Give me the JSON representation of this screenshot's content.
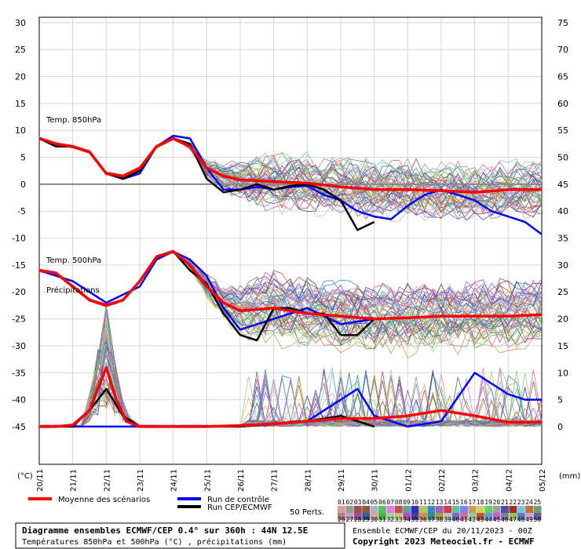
{
  "chart_data": {
    "type": "line",
    "title": "Diagramme ensembles ECMWF/CEP 0.4° sur 360h : 44N 12.5E",
    "subtitle": "Températures 850hPa et 500hPa (°C) , précipitations (mm)",
    "left_axis_unit": "(°C)",
    "right_axis_unit": "(mm)",
    "left_ticks": [
      30,
      25,
      20,
      15,
      10,
      5,
      0,
      -5,
      -10,
      -15,
      -20,
      -25,
      -30,
      -35,
      -40,
      -45
    ],
    "right_ticks": [
      75,
      70,
      65,
      60,
      55,
      50,
      45,
      40,
      35,
      30,
      25,
      20,
      15,
      10,
      5,
      0
    ],
    "ylim": [
      -52,
      31
    ],
    "right_ylim": [
      0,
      75
    ],
    "x_dates": [
      "20/11",
      "21/11",
      "22/11",
      "23/11",
      "24/11",
      "25/11",
      "26/11",
      "27/11",
      "28/11",
      "29/11",
      "30/11",
      "01/12",
      "02/12",
      "03/12",
      "04/12",
      "05/12"
    ],
    "grid": true,
    "panel_labels": [
      "Temp. 850hPa",
      "Temp. 500hPa",
      "Précipitations"
    ],
    "reference_line_y": 0,
    "series": [
      {
        "name": "Moyenne des scénarios",
        "color": "#ff0000",
        "group": "t850",
        "x": [
          0,
          0.5,
          1,
          1.5,
          2,
          2.5,
          3,
          3.5,
          4,
          4.5,
          5,
          5.5,
          6,
          7,
          8,
          9,
          10,
          11,
          12,
          13,
          14,
          15
        ],
        "values": [
          8.5,
          7.5,
          7,
          6,
          2,
          1.5,
          3,
          7,
          8.5,
          7,
          3,
          1.5,
          0.8,
          0.5,
          0.2,
          -0.5,
          -1,
          -1,
          -1.2,
          -1.5,
          -1,
          -1
        ]
      },
      {
        "name": "Run de contrôle",
        "color": "#0000ff",
        "group": "t850",
        "x": [
          0,
          0.5,
          1,
          1.5,
          2,
          2.5,
          3,
          3.5,
          4,
          4.5,
          5,
          5.5,
          6,
          6.5,
          7,
          7.5,
          8,
          8.5,
          9,
          9.5,
          10,
          10.5,
          11,
          11.5,
          12,
          12.5,
          13,
          13.5,
          14,
          14.5,
          15
        ],
        "values": [
          8.5,
          7,
          7,
          6,
          2,
          1,
          2,
          7,
          9,
          8.5,
          3,
          -1,
          -1,
          -0.5,
          -1,
          -0.5,
          -0.3,
          -2,
          -3,
          -5,
          -6,
          -6.5,
          -4,
          -2,
          -1,
          -2,
          -3,
          -5,
          -6,
          -7,
          -9.3
        ]
      },
      {
        "name": "Run CEP/ECMWF",
        "color": "#000000",
        "group": "t850",
        "x": [
          0,
          0.5,
          1,
          1.5,
          2,
          2.5,
          3,
          3.5,
          4,
          4.5,
          5,
          5.5,
          6,
          6.5,
          7,
          7.5,
          8,
          8.5,
          9,
          9.5,
          10
        ],
        "values": [
          8.5,
          7,
          7,
          6,
          2,
          1,
          2.5,
          7,
          8.5,
          7.5,
          1,
          -1.5,
          -1,
          0,
          -1,
          -0.3,
          0,
          -1,
          -3,
          -8.5,
          -7
        ]
      },
      {
        "name": "Moyenne des scénarios",
        "color": "#ff0000",
        "group": "t500",
        "x": [
          0,
          0.5,
          1,
          1.5,
          2,
          2.5,
          3,
          3.5,
          4,
          4.5,
          5,
          5.5,
          6,
          7,
          8,
          9,
          10,
          11,
          12,
          13,
          14,
          15
        ],
        "values": [
          -16,
          -16.5,
          -19,
          -21.5,
          -22.5,
          -21.5,
          -18,
          -13.5,
          -12.5,
          -15,
          -19,
          -22,
          -23.5,
          -23,
          -24,
          -24.5,
          -25,
          -24.8,
          -24.5,
          -24.5,
          -24.5,
          -24.2
        ]
      },
      {
        "name": "Run de contrôle",
        "color": "#0000ff",
        "group": "t500",
        "x": [
          0,
          1,
          2,
          3,
          3.5,
          4,
          4.5,
          5,
          5.5,
          6,
          7,
          8,
          9,
          10
        ],
        "values": [
          -16,
          -18,
          -22,
          -19,
          -14,
          -12.5,
          -14,
          -17,
          -23,
          -27,
          -25,
          -23,
          -26,
          -25
        ]
      },
      {
        "name": "Run CEP/ECMWF",
        "color": "#000000",
        "group": "t500",
        "x": [
          0,
          0.5,
          1,
          1.5,
          2,
          2.5,
          3,
          3.5,
          4,
          4.5,
          5,
          5.5,
          6,
          6.5,
          7,
          7.5,
          8,
          8.5,
          9,
          9.5,
          10
        ],
        "values": [
          -16,
          -16.5,
          -19,
          -21.5,
          -22.5,
          -21.5,
          -18,
          -13.5,
          -12.5,
          -16,
          -18.5,
          -24,
          -28,
          -29,
          -23,
          -23,
          -24,
          -24,
          -28,
          -28,
          -25
        ]
      },
      {
        "name": "Moyenne des scénarios",
        "color": "#ff0000",
        "group": "precip",
        "x": [
          0,
          0.5,
          1,
          1.5,
          2,
          2.3,
          2.6,
          3,
          4,
          5,
          6,
          7,
          8,
          9,
          10,
          11,
          12,
          13,
          14,
          15
        ],
        "values": [
          0,
          0,
          0.3,
          3,
          11,
          5,
          1,
          0,
          0,
          0,
          0.2,
          0.5,
          1,
          1.5,
          1.5,
          2,
          3,
          2,
          0.8,
          0.8
        ]
      },
      {
        "name": "Run CEP/ECMWF",
        "color": "#000000",
        "group": "precip",
        "x": [
          0,
          1,
          1.5,
          2,
          2.5,
          3,
          4,
          6,
          8,
          9,
          9.5,
          10
        ],
        "values": [
          0,
          0,
          3,
          7,
          2,
          0,
          0,
          0,
          1,
          2,
          1,
          0
        ]
      },
      {
        "name": "Run de contrôle",
        "color": "#0000ff",
        "group": "precip",
        "x": [
          0,
          6,
          8,
          9,
          9.5,
          10,
          10.5,
          11,
          12,
          13,
          14,
          14.5,
          15
        ],
        "values": [
          0,
          0,
          1,
          5,
          7,
          2,
          1,
          0,
          1,
          10,
          6,
          5,
          5
        ]
      }
    ],
    "legend": {
      "mean_label": "Moyenne des scénarios",
      "control_label": "Run de contrôle",
      "oper_label": "Run CEP/ECMWF",
      "perts_label": "50 Perts.",
      "perts_top": [
        "01",
        "02",
        "03",
        "04",
        "05",
        "06",
        "07",
        "08",
        "09",
        "10",
        "11",
        "12",
        "13",
        "14",
        "15",
        "16",
        "17",
        "18",
        "19",
        "20",
        "21",
        "22",
        "23",
        "24",
        "25"
      ],
      "perts_bottom": [
        "26",
        "27",
        "28",
        "29",
        "30",
        "31",
        "32",
        "33",
        "34",
        "35",
        "36",
        "37",
        "38",
        "39",
        "40",
        "41",
        "42",
        "43",
        "44",
        "45",
        "46",
        "47",
        "48",
        "49",
        "50"
      ],
      "perts_colors_top": [
        "#d4a0a0",
        "#9a9a9a",
        "#a05050",
        "#8a5a3a",
        "#b0b0d0",
        "#60c060",
        "#e080e0",
        "#c05050",
        "#60a0a0",
        "#3030c0",
        "#c0c060",
        "#3090c0",
        "#a060c0",
        "#d04040",
        "#60c0a0",
        "#8080ff",
        "#c0a060",
        "#d0d060",
        "#60d060",
        "#a0a0a0",
        "#5050a0",
        "#a03030",
        "#80c0e0",
        "#c07030",
        "#70a070"
      ],
      "perts_colors_bottom": [
        "#b08080",
        "#c0a0c0",
        "#a05090",
        "#3060a0",
        "#e0a0a0",
        "#50b050",
        "#a0d0a0",
        "#d0c080",
        "#b050b0",
        "#4040a0",
        "#d09050",
        "#309090",
        "#a0a040",
        "#c0c0c0",
        "#7070c0",
        "#d070a0",
        "#90d090",
        "#c05030",
        "#60a0d0",
        "#c060c0",
        "#8080a0",
        "#a0c050",
        "#5080c0",
        "#d0a0d0",
        "#6060a0"
      ]
    },
    "footer_left": "Ensemble ECMWF/CEP du 20/11/2023 - 00Z",
    "footer_right": "Copyright 2023 Meteociel.fr - ECMWF"
  }
}
